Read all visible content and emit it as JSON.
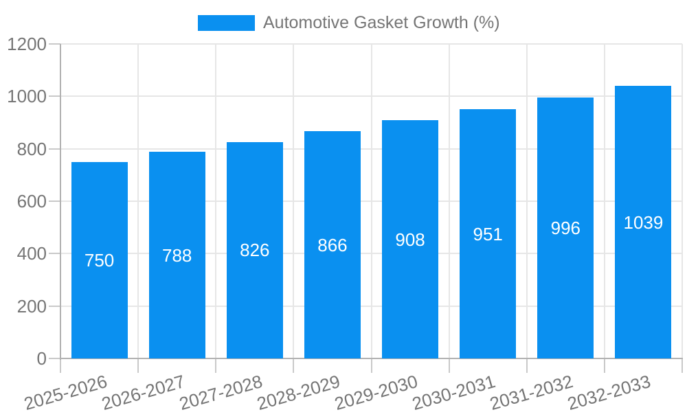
{
  "legend": {
    "label": "Automotive Gasket Growth (%)"
  },
  "colors": {
    "bar": "#0a90f0",
    "axis_text": "#757575",
    "gridline": "#e6e6e6",
    "axis_line": "#b1b1b1",
    "tick": "#c9c9c9",
    "bar_label": "#ffffff",
    "background": "#ffffff"
  },
  "chart_data": {
    "type": "bar",
    "title": "",
    "legend_entries": [
      "Automotive Gasket Growth (%)"
    ],
    "legend_position": "top",
    "categories": [
      "2025-2026",
      "2026-2027",
      "2027-2028",
      "2028-2029",
      "2029-2030",
      "2030-2031",
      "2031-2032",
      "2032-2033"
    ],
    "values": [
      750,
      788,
      826,
      866,
      908,
      951,
      996,
      1039
    ],
    "bar_value_labels": [
      "750",
      "788",
      "826",
      "866",
      "908",
      "951",
      "996",
      "1039"
    ],
    "xlabel": "",
    "ylabel": "",
    "ylim": [
      0,
      1200
    ],
    "yticks": [
      0,
      200,
      400,
      600,
      800,
      1000,
      1200
    ],
    "ytick_labels": [
      "0",
      "200",
      "400",
      "600",
      "800",
      "1000",
      "1200"
    ],
    "grid": true,
    "x_label_rotation_deg": -16
  }
}
